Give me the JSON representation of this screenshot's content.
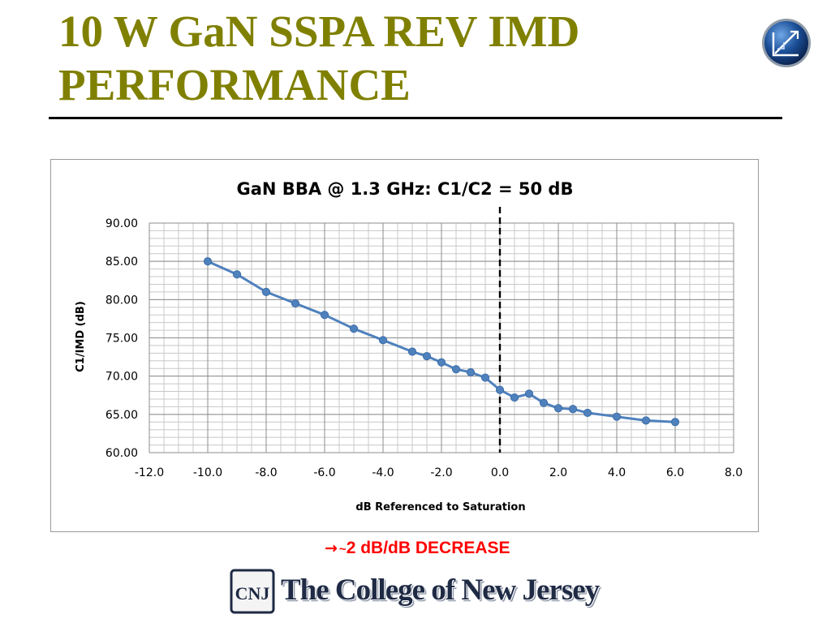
{
  "slide": {
    "title": "10 W GaN SSPA REV IMD PERFORMANCE",
    "note_arrow": "→",
    "note_tilde": "~",
    "note_text": "2 dB/dB DECREASE",
    "college_monogram": "CNJ",
    "college_name": "The College of New Jersey",
    "colors": {
      "title": "#808000",
      "note": "#ff0000",
      "series": "#4f81bd"
    }
  },
  "chart_data": {
    "type": "scatter",
    "title": "GaN BBA @ 1.3 GHz:  C1/C2 = 50 dB",
    "xlabel": "dB Referenced to Saturation",
    "ylabel": "C1/IMD (dB)",
    "xlim": [
      -12,
      8
    ],
    "ylim": [
      60,
      90
    ],
    "x_ticks": [
      "-12.0",
      "-10.0",
      "-8.0",
      "-6.0",
      "-4.0",
      "-2.0",
      "0.0",
      "2.0",
      "4.0",
      "6.0",
      "8.0"
    ],
    "y_ticks": [
      "60.00",
      "65.00",
      "70.00",
      "75.00",
      "80.00",
      "85.00",
      "90.00"
    ],
    "grid": true,
    "minor_grid": {
      "x_step": 0.5,
      "y_step": 1
    },
    "reference_line": {
      "x": 0,
      "style": "dashed"
    },
    "series": [
      {
        "color": "#4f81bd",
        "marker": "circle",
        "line": true,
        "points": [
          [
            -10,
            85.0
          ],
          [
            -9,
            83.3
          ],
          [
            -8,
            81.0
          ],
          [
            -7,
            79.5
          ],
          [
            -6,
            78.0
          ],
          [
            -5,
            76.2
          ],
          [
            -4,
            74.7
          ],
          [
            -3,
            73.2
          ],
          [
            -2.5,
            72.6
          ],
          [
            -2,
            71.8
          ],
          [
            -1.5,
            70.9
          ],
          [
            -1,
            70.5
          ],
          [
            -0.5,
            69.8
          ],
          [
            0,
            68.2
          ],
          [
            0.5,
            67.2
          ],
          [
            1,
            67.7
          ],
          [
            1.5,
            66.5
          ],
          [
            2,
            65.8
          ],
          [
            2.5,
            65.7
          ],
          [
            3,
            65.2
          ],
          [
            4,
            64.7
          ],
          [
            5,
            64.2
          ],
          [
            6,
            64.0
          ]
        ]
      }
    ]
  }
}
